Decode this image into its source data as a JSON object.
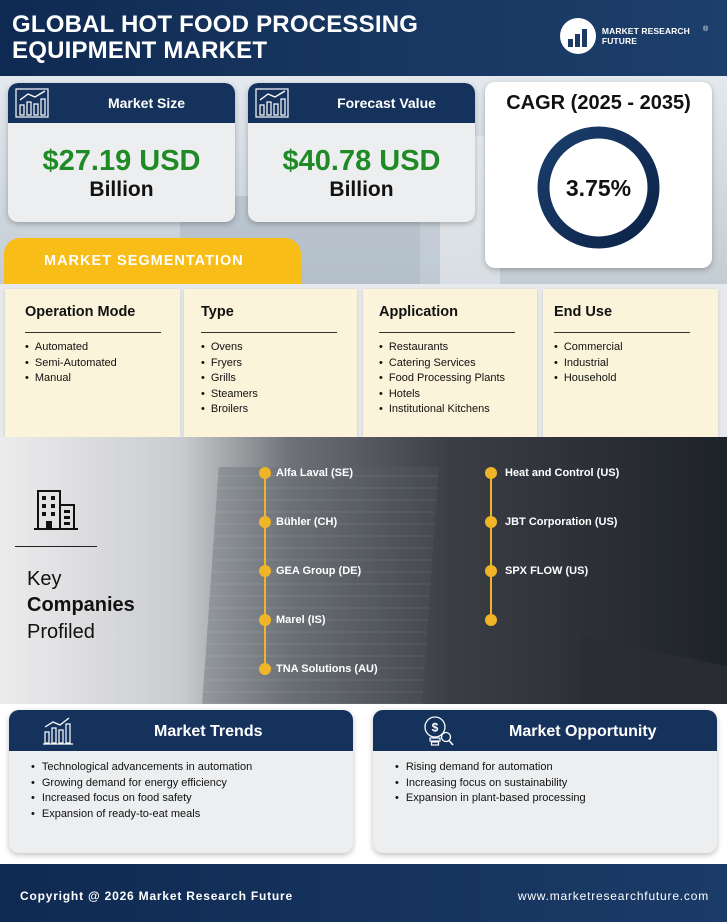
{
  "header": {
    "title_line1": "GLOBAL HOT FOOD PROCESSING",
    "title_line2": "EQUIPMENT MARKET",
    "logo_text": "MARKET RESEARCH FUTURE",
    "logo_reg": "®"
  },
  "market_size": {
    "label": "Market Size",
    "value": "$27.19 USD",
    "unit": "Billion",
    "icon": "growth-chart-icon"
  },
  "forecast": {
    "label": "Forecast Value",
    "value": "$40.78 USD",
    "unit": "Billion",
    "icon": "growth-chart-icon"
  },
  "cagr": {
    "title": "CAGR (2025 - 2035)",
    "value": "3.75%"
  },
  "segmentation": {
    "banner": "MARKET SEGMENTATION",
    "columns": [
      {
        "title": "Operation Mode",
        "items": [
          "Automated",
          "Semi-Automated",
          "Manual"
        ]
      },
      {
        "title": "Type",
        "items": [
          "Ovens",
          "Fryers",
          "Grills",
          "Steamers",
          "Broilers"
        ]
      },
      {
        "title": "Application",
        "items": [
          "Restaurants",
          "Catering Services",
          "Food Processing Plants",
          "Hotels",
          "Institutional Kitchens"
        ]
      },
      {
        "title": "End Use",
        "items": [
          "Commercial",
          "Industrial",
          "Household"
        ]
      }
    ]
  },
  "companies": {
    "heading_1": "Key",
    "heading_2": "Companies",
    "heading_3": "Profiled",
    "icon": "office-building-icon",
    "left": [
      "Alfa Laval (SE)",
      "Bühler (CH)",
      "GEA Group (DE)",
      "Marel (IS)",
      "TNA Solutions (AU)"
    ],
    "right": [
      "Heat and Control (US)",
      "JBT Corporation (US)",
      "SPX FLOW (US)"
    ]
  },
  "trends": {
    "title": "Market Trends",
    "icon": "bar-chart-icon",
    "items": [
      "Technological advancements in automation",
      "Growing demand for energy efficiency",
      "Increased focus on food safety",
      "Expansion of ready-to-eat meals"
    ]
  },
  "opportunity": {
    "title": "Market Opportunity",
    "icon": "dollar-lightbulb-icon",
    "items": [
      "Rising demand for automation",
      "Increasing focus on sustainability",
      "Expansion in plant-based processing"
    ]
  },
  "footer": {
    "copyright": "Copyright @ 2026 Market Research Future",
    "website": "www.marketresearchfuture.com"
  },
  "colors": {
    "navy": "#15325c",
    "green": "#1f8a26",
    "yellow": "#f8bd16",
    "cream": "#fcf3db",
    "gold": "#f0b429"
  }
}
